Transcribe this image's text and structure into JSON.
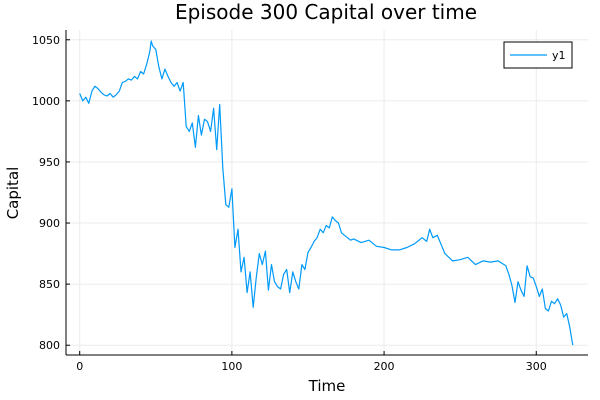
{
  "chart_data": {
    "type": "line",
    "title": "Episode 300 Capital over time",
    "xlabel": "Time",
    "ylabel": "Capital",
    "xlim": [
      -9,
      334
    ],
    "ylim": [
      792,
      1058
    ],
    "xticks": [
      0,
      100,
      200,
      300
    ],
    "yticks": [
      800,
      850,
      900,
      950,
      1000,
      1050
    ],
    "grid": true,
    "legend_position": "top-right",
    "series": [
      {
        "name": "y1",
        "color": "#009af9",
        "x": [
          0,
          2,
          4,
          6,
          8,
          10,
          12,
          14,
          16,
          18,
          20,
          22,
          24,
          26,
          28,
          30,
          32,
          34,
          36,
          38,
          40,
          42,
          44,
          46,
          47,
          48,
          50,
          52,
          54,
          56,
          58,
          60,
          62,
          64,
          66,
          68,
          70,
          72,
          74,
          76,
          78,
          80,
          82,
          84,
          86,
          88,
          90,
          92,
          94,
          96,
          98,
          100,
          102,
          104,
          106,
          108,
          110,
          112,
          114,
          116,
          118,
          120,
          122,
          124,
          126,
          128,
          130,
          132,
          134,
          136,
          138,
          140,
          142,
          144,
          146,
          148,
          150,
          152,
          154,
          156,
          158,
          160,
          162,
          164,
          166,
          168,
          170,
          172,
          174,
          176,
          178,
          180,
          185,
          190,
          195,
          200,
          205,
          210,
          215,
          220,
          225,
          228,
          230,
          232,
          235,
          240,
          245,
          250,
          255,
          260,
          265,
          270,
          275,
          280,
          282,
          284,
          286,
          288,
          290,
          292,
          294,
          296,
          298,
          300,
          302,
          304,
          306,
          308,
          310,
          312,
          314,
          316,
          318,
          320,
          322,
          324
        ],
        "y": [
          1006,
          1000,
          1003,
          998,
          1008,
          1012,
          1010,
          1007,
          1005,
          1004,
          1006,
          1003,
          1005,
          1008,
          1015,
          1016,
          1018,
          1017,
          1020,
          1018,
          1024,
          1022,
          1030,
          1040,
          1049,
          1045,
          1042,
          1028,
          1018,
          1026,
          1020,
          1015,
          1012,
          1015,
          1008,
          1015,
          979,
          975,
          982,
          962,
          988,
          972,
          985,
          983,
          975,
          994,
          960,
          997,
          945,
          915,
          913,
          928,
          880,
          895,
          860,
          872,
          843,
          860,
          831,
          855,
          875,
          866,
          877,
          845,
          866,
          852,
          848,
          846,
          858,
          862,
          843,
          860,
          852,
          846,
          866,
          862,
          876,
          880,
          885,
          888,
          895,
          892,
          898,
          896,
          905,
          902,
          900,
          892,
          890,
          888,
          886,
          887,
          884,
          886,
          881,
          880,
          878,
          878,
          880,
          883,
          888,
          885,
          895,
          888,
          890,
          875,
          869,
          870,
          872,
          866,
          869,
          868,
          869,
          865,
          858,
          849,
          835,
          852,
          845,
          840,
          865,
          856,
          855,
          848,
          840,
          846,
          830,
          828,
          836,
          834,
          838,
          833,
          823,
          826,
          815,
          800
        ]
      }
    ]
  }
}
